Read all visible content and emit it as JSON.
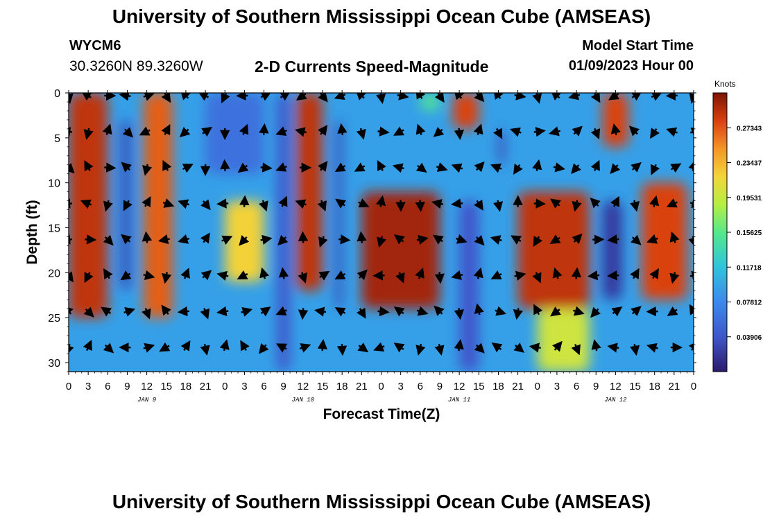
{
  "header": {
    "title": "University of Southern Mississippi Ocean Cube (AMSEAS)",
    "station_id": "WYCM6",
    "coordinates": "30.3260N  89.3260W",
    "subtitle": "2-D Currents Speed-Magnitude",
    "model_start_label": "Model Start Time",
    "model_start_value": "01/09/2023 Hour 00"
  },
  "footer": {
    "title": "University of Southern Mississippi Ocean Cube (AMSEAS)"
  },
  "chart_data": {
    "type": "heatmap",
    "title": "2-D Currents Speed-Magnitude",
    "xlabel": "Forecast Time(Z)",
    "ylabel": "Depth (ft)",
    "x_range": [
      0,
      96
    ],
    "y_range": [
      0,
      31
    ],
    "y_inverted": true,
    "x_ticks": [
      0,
      3,
      6,
      9,
      12,
      15,
      18,
      21,
      24,
      27,
      30,
      33,
      36,
      39,
      42,
      45,
      48,
      51,
      54,
      57,
      60,
      63,
      66,
      69,
      72,
      75,
      78,
      81,
      84,
      87,
      90,
      93,
      96
    ],
    "x_tick_labels": [
      "0",
      "3",
      "6",
      "9",
      "12",
      "15",
      "18",
      "21",
      "0",
      "3",
      "6",
      "9",
      "12",
      "15",
      "18",
      "21",
      "0",
      "3",
      "6",
      "9",
      "12",
      "15",
      "18",
      "21",
      "0",
      "3",
      "6",
      "9",
      "12",
      "15",
      "18",
      "21",
      "0"
    ],
    "y_ticks": [
      0,
      5,
      10,
      15,
      20,
      25,
      30
    ],
    "y_tick_labels": [
      "0",
      "5",
      "10",
      "15",
      "20",
      "25",
      "30"
    ],
    "day_labels": [
      {
        "text": "JAN 9",
        "hour": 12
      },
      {
        "text": "JAN 10",
        "hour": 36
      },
      {
        "text": "JAN 11",
        "hour": 60
      },
      {
        "text": "JAN 12",
        "hour": 84
      }
    ],
    "colorbar": {
      "title": "Knots",
      "min": 0,
      "max": 0.3125,
      "ticks": [
        0.27343,
        0.23437,
        0.19531,
        0.15625,
        0.11718,
        0.07812,
        0.03906
      ],
      "tick_labels": [
        "0.27343",
        "0.23437",
        "0.19531",
        "0.15625",
        "0.11718",
        "0.07812",
        "0.03906"
      ]
    },
    "vector_depths_ft": [
      0,
      4,
      8,
      12,
      16,
      20,
      24,
      28
    ],
    "vector_hours": [
      0,
      3,
      6,
      9,
      12,
      15,
      18,
      21,
      24,
      27,
      30,
      33,
      36,
      39,
      42,
      45,
      48,
      51,
      54,
      57,
      60,
      63,
      66,
      69,
      72,
      75,
      78,
      81,
      84,
      87,
      90,
      93,
      96
    ],
    "speed_bands": [
      {
        "t_start": 0,
        "t_end": 6,
        "d_top": 0,
        "d_bottom": 25,
        "value": 0.29
      },
      {
        "t_start": 8,
        "t_end": 9.5,
        "d_top": 3,
        "d_bottom": 22,
        "value": 0.03
      },
      {
        "t_start": 11.5,
        "t_end": 16,
        "d_top": 0,
        "d_bottom": 25,
        "value": 0.27
      },
      {
        "t_start": 21,
        "t_end": 30,
        "d_top": 0,
        "d_bottom": 9,
        "value": 0.06
      },
      {
        "t_start": 24,
        "t_end": 30,
        "d_top": 12,
        "d_bottom": 21,
        "value": 0.22
      },
      {
        "t_start": 32,
        "t_end": 34,
        "d_top": 0,
        "d_bottom": 31,
        "value": 0.04
      },
      {
        "t_start": 35,
        "t_end": 39,
        "d_top": 0,
        "d_bottom": 22,
        "value": 0.29
      },
      {
        "t_start": 41,
        "t_end": 42,
        "d_top": 3,
        "d_bottom": 24,
        "value": 0.03
      },
      {
        "t_start": 45,
        "t_end": 57,
        "d_top": 11,
        "d_bottom": 24,
        "value": 0.3
      },
      {
        "t_start": 54,
        "t_end": 57,
        "d_top": 0,
        "d_bottom": 2,
        "value": 0.15
      },
      {
        "t_start": 59,
        "t_end": 63,
        "d_top": 0,
        "d_bottom": 4,
        "value": 0.28
      },
      {
        "t_start": 60,
        "t_end": 63,
        "d_top": 12,
        "d_bottom": 31,
        "value": 0.04
      },
      {
        "t_start": 66,
        "t_end": 67,
        "d_top": 4,
        "d_bottom": 8,
        "value": 0.03
      },
      {
        "t_start": 69,
        "t_end": 80,
        "d_top": 11,
        "d_bottom": 24,
        "value": 0.29
      },
      {
        "t_start": 72,
        "t_end": 80,
        "d_top": 24,
        "d_bottom": 31,
        "value": 0.2
      },
      {
        "t_start": 82,
        "t_end": 86,
        "d_top": 0,
        "d_bottom": 6,
        "value": 0.28
      },
      {
        "t_start": 82,
        "t_end": 85,
        "d_top": 12,
        "d_bottom": 23,
        "value": 0.02
      },
      {
        "t_start": 88,
        "t_end": 95,
        "d_top": 10,
        "d_bottom": 23,
        "value": 0.28
      }
    ]
  }
}
